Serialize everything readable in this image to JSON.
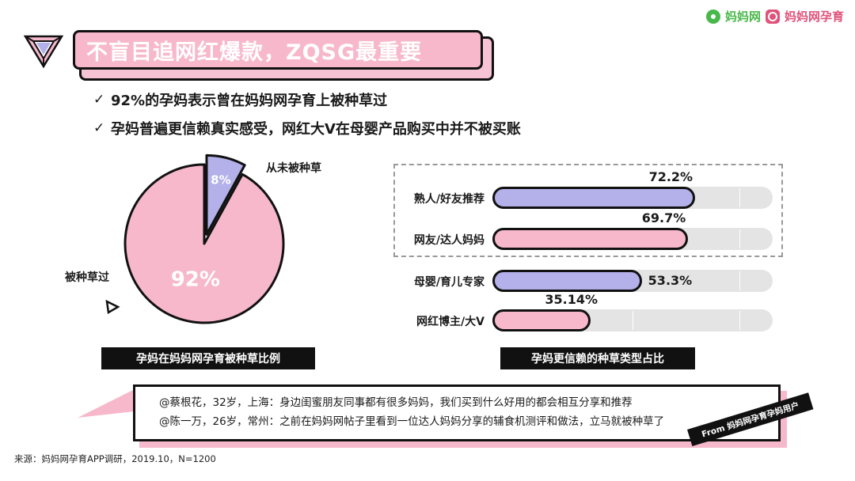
{
  "brand": {
    "name1": "妈妈网",
    "name2": "妈妈网孕育",
    "colors": {
      "green": "#49b84a",
      "pink": "#e0527a"
    },
    "icons": [
      "mamawang-logo-icon",
      "yunyu-app-icon"
    ]
  },
  "title": "不盲目追网红爆款，ZQSG最重要",
  "bullets": [
    {
      "icon": "check-icon",
      "text": "92%的孕妈表示曾在妈妈网孕育上被种草过"
    },
    {
      "icon": "check-icon",
      "text": "孕妈普遍更信赖真实感受，网红大V在母婴产品购买中并不被买账"
    }
  ],
  "chart_data": [
    {
      "type": "pie",
      "title": "孕妈在妈妈网孕育被种草比例",
      "slices": [
        {
          "label": "被种草过",
          "value": 92,
          "value_label": "92%",
          "color": "#f7b8cc"
        },
        {
          "label": "从未被种草",
          "value": 8,
          "value_label": "8%",
          "color": "#b3b0ea"
        }
      ]
    },
    {
      "type": "bar",
      "orientation": "horizontal",
      "title": "孕妈更信赖的种草类型占比",
      "categories": [
        "熟人/好友推荐",
        "网友/达人妈妈",
        "母婴/育儿专家",
        "网红博主/大V"
      ],
      "values": [
        72.2,
        69.7,
        53.3,
        35.14
      ],
      "value_labels": [
        "72.2%",
        "69.7%",
        "53.3%",
        "35.14%"
      ],
      "colors": [
        "#b3b0ea",
        "#f7b8cc",
        "#b3b0ea",
        "#f7b8cc"
      ],
      "xlim": [
        0,
        100
      ]
    }
  ],
  "quotes": [
    "@蔡根花，32岁，上海：身边闺蜜朋友同事都有很多妈妈，我们买到什么好用的都会相互分享和推荐",
    "@陈一万，26岁，常州：之前在妈妈网帖子里看到一位达人妈妈分享的辅食机测评和做法，立马就被种草了"
  ],
  "from_tag": "From 妈妈网孕育孕妈用户",
  "source": "来源：妈妈网孕育APP调研，2019.10，N=1200"
}
